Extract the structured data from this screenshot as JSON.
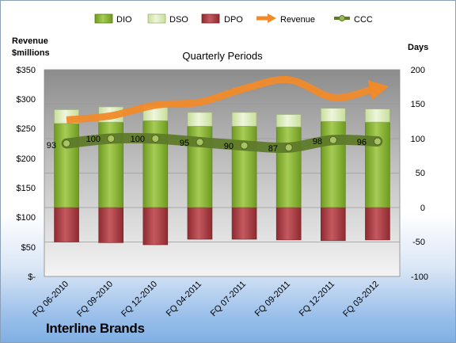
{
  "chart_data": {
    "type": "bar",
    "title": "Quarterly Periods",
    "company": "Interline Brands",
    "left_axis_label": [
      "Revenue",
      "$millions"
    ],
    "right_axis_label": "Days",
    "categories": [
      "FQ 06-2010",
      "FQ 09-2010",
      "FQ 12-2010",
      "FQ 04-2011",
      "FQ 07-2011",
      "FQ 09-2011",
      "FQ 12-2011",
      "FQ 03-2012"
    ],
    "left_ticks": [
      "$350",
      "$300",
      "$250",
      "$200",
      "$150",
      "$100",
      "$50",
      "$-"
    ],
    "right_ticks": [
      "200",
      "150",
      "100",
      "50",
      "0",
      "-50",
      "-100"
    ],
    "left_ylim": [
      0,
      350
    ],
    "right_ylim": [
      -100,
      200
    ],
    "legend_position": "top",
    "series": [
      {
        "name": "DIO",
        "type": "bar",
        "color": "#8db53a",
        "values": [
          122,
          124,
          126,
          118,
          118,
          117,
          125,
          124
        ]
      },
      {
        "name": "DSO",
        "type": "bar",
        "color": "#d6e8b0",
        "values": [
          20,
          22,
          22,
          20,
          20,
          18,
          19,
          19
        ]
      },
      {
        "name": "DPO",
        "type": "bar",
        "color": "#b03e44",
        "values": [
          -50,
          -51,
          -54,
          -46,
          -46,
          -47,
          -48,
          -47
        ]
      },
      {
        "name": "Revenue",
        "type": "line",
        "color": "#f08a2a",
        "axis": "left",
        "values": [
          265,
          272,
          290,
          295,
          318,
          333,
          303,
          318
        ]
      },
      {
        "name": "CCC",
        "type": "line",
        "color": "#5f7a2a",
        "axis": "right",
        "values": [
          93,
          100,
          100,
          95,
          90,
          87,
          98,
          96
        ],
        "labels": [
          "93",
          "100",
          "100",
          "95",
          "90",
          "87",
          "98",
          "96"
        ]
      }
    ]
  }
}
